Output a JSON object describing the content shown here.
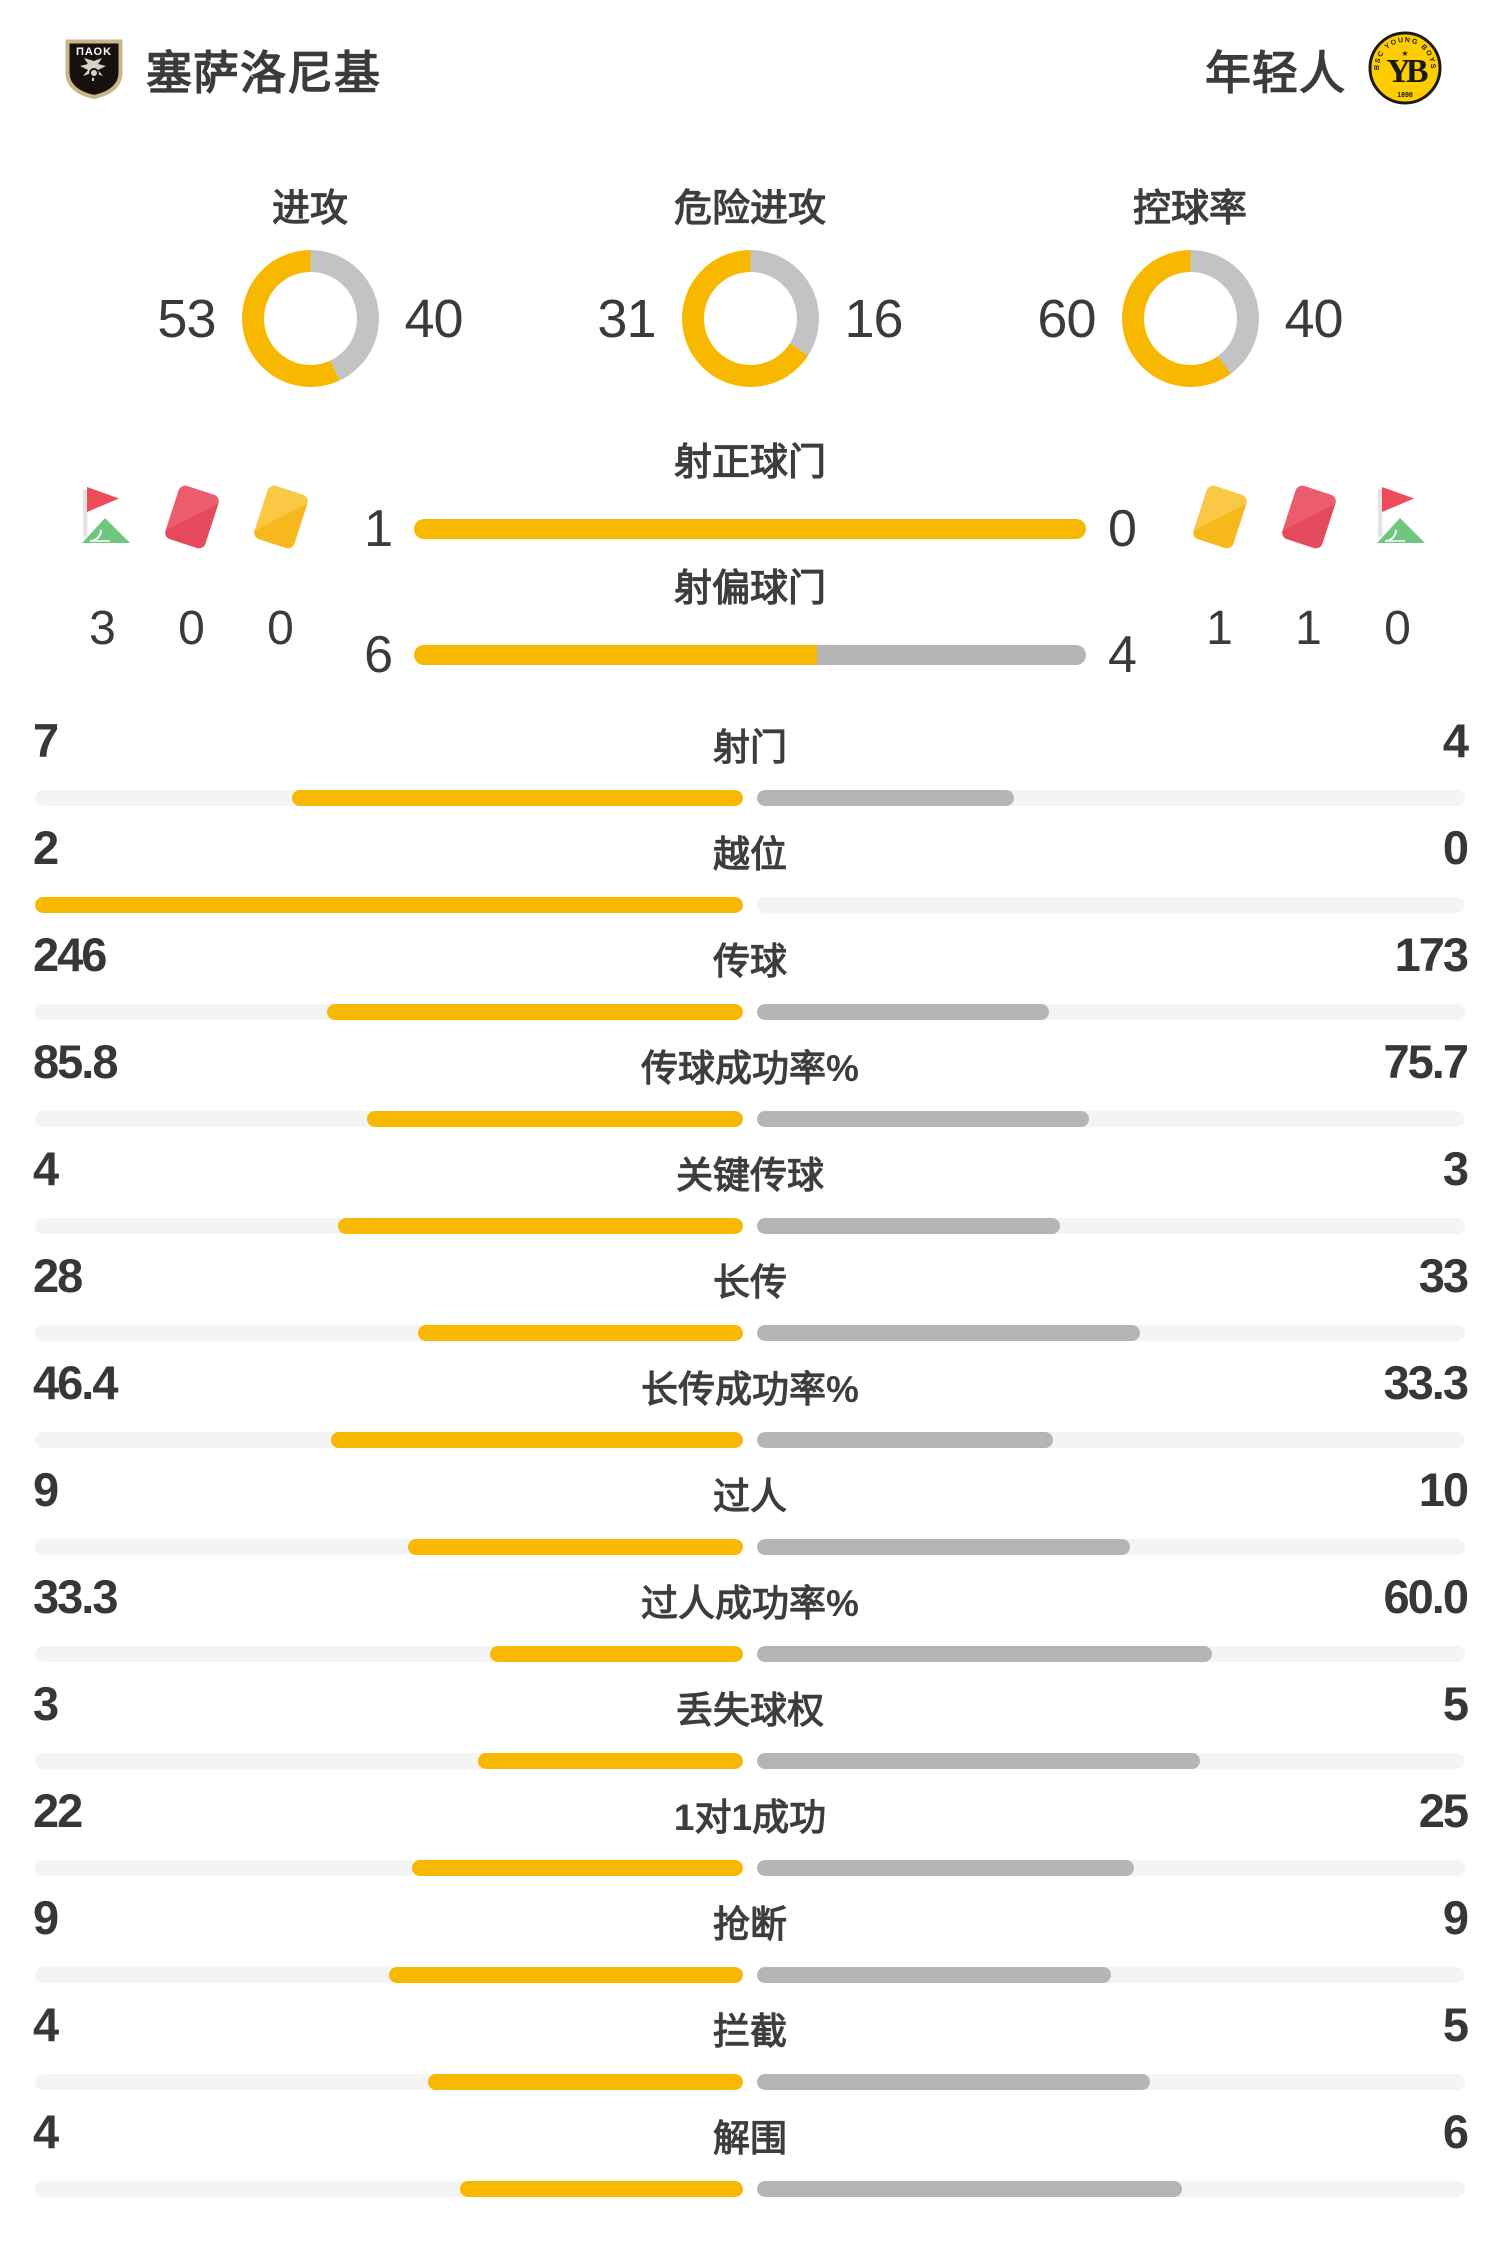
{
  "colors": {
    "accent_yellow": "#f8b800",
    "bar_gray": "#b5b5b5",
    "donut_gray": "#c3c3c3",
    "track_gray": "#f4f4f4",
    "text_dark": "#3a3a3a",
    "card_red": "#e44a5b",
    "card_yellow": "#f7b81e",
    "flag_red": "#ee4b5a",
    "flag_green": "#6fc67e"
  },
  "header": {
    "home": {
      "name": "塞萨洛尼基",
      "logo_icon": "paok-crest-icon",
      "logo_text": "ΠΑΟΚ"
    },
    "away": {
      "name": "年轻人",
      "logo_icon": "young-boys-crest-icon",
      "logo_top_text": "BSC YOUNG BOYS",
      "logo_letters": "YB",
      "logo_year": "1898"
    }
  },
  "donuts": [
    {
      "label": "进攻",
      "home": "53",
      "away": "40"
    },
    {
      "label": "危险进攻",
      "home": "31",
      "away": "16"
    },
    {
      "label": "控球率",
      "home": "60",
      "away": "40"
    }
  ],
  "discipline": {
    "home": [
      {
        "icon": "corner-flag-icon",
        "value": "3"
      },
      {
        "icon": "red-card-icon",
        "value": "0"
      },
      {
        "icon": "yellow-card-icon",
        "value": "0"
      }
    ],
    "away": [
      {
        "icon": "yellow-card-icon",
        "value": "1"
      },
      {
        "icon": "red-card-icon",
        "value": "1"
      },
      {
        "icon": "corner-flag-icon",
        "value": "0"
      }
    ]
  },
  "shot_rows": [
    {
      "label": "射正球门",
      "home": "1",
      "away": "0"
    },
    {
      "label": "射偏球门",
      "home": "6",
      "away": "4"
    }
  ],
  "stat_rows": [
    {
      "label": "射门",
      "home": "7",
      "away": "4"
    },
    {
      "label": "越位",
      "home": "2",
      "away": "0"
    },
    {
      "label": "传球",
      "home": "246",
      "away": "173"
    },
    {
      "label": "传球成功率%",
      "home": "85.8",
      "away": "75.7"
    },
    {
      "label": "关键传球",
      "home": "4",
      "away": "3"
    },
    {
      "label": "长传",
      "home": "28",
      "away": "33"
    },
    {
      "label": "长传成功率%",
      "home": "46.4",
      "away": "33.3"
    },
    {
      "label": "过人",
      "home": "9",
      "away": "10"
    },
    {
      "label": "过人成功率%",
      "home": "33.3",
      "away": "60.0"
    },
    {
      "label": "丢失球权",
      "home": "3",
      "away": "5"
    },
    {
      "label": "1对1成功",
      "home": "22",
      "away": "25"
    },
    {
      "label": "抢断",
      "home": "9",
      "away": "9"
    },
    {
      "label": "拦截",
      "home": "4",
      "away": "5"
    },
    {
      "label": "解围",
      "home": "4",
      "away": "6"
    }
  ],
  "chart_data": {
    "type": "bar",
    "title": "",
    "teams": [
      "塞萨洛尼基",
      "年轻人"
    ],
    "donut_charts": [
      {
        "label": "进攻",
        "values": [
          53,
          40
        ]
      },
      {
        "label": "危险进攻",
        "values": [
          31,
          16
        ]
      },
      {
        "label": "控球率",
        "values": [
          60,
          40
        ]
      }
    ],
    "discipline": {
      "塞萨洛尼基": {
        "corners": 3,
        "red_cards": 0,
        "yellow_cards": 0
      },
      "年轻人": {
        "yellow_cards": 1,
        "red_cards": 1,
        "corners": 0
      }
    },
    "categories": [
      "射正球门",
      "射偏球门",
      "射门",
      "越位",
      "传球",
      "传球成功率%",
      "关键传球",
      "长传",
      "长传成功率%",
      "过人",
      "过人成功率%",
      "丢失球权",
      "1对1成功",
      "抢断",
      "拦截",
      "解围"
    ],
    "series": [
      {
        "name": "塞萨洛尼基",
        "values": [
          1,
          6,
          7,
          2,
          246,
          85.8,
          4,
          28,
          46.4,
          9,
          33.3,
          3,
          22,
          9,
          4,
          4
        ]
      },
      {
        "name": "年轻人",
        "values": [
          0,
          4,
          4,
          0,
          173,
          75.7,
          3,
          33,
          33.3,
          10,
          60.0,
          5,
          25,
          9,
          5,
          6
        ]
      }
    ],
    "layout": "horizontal paired bars growing outward from center, left=yellow home, right=gray away, lengths proportional to value/(home+away)"
  }
}
